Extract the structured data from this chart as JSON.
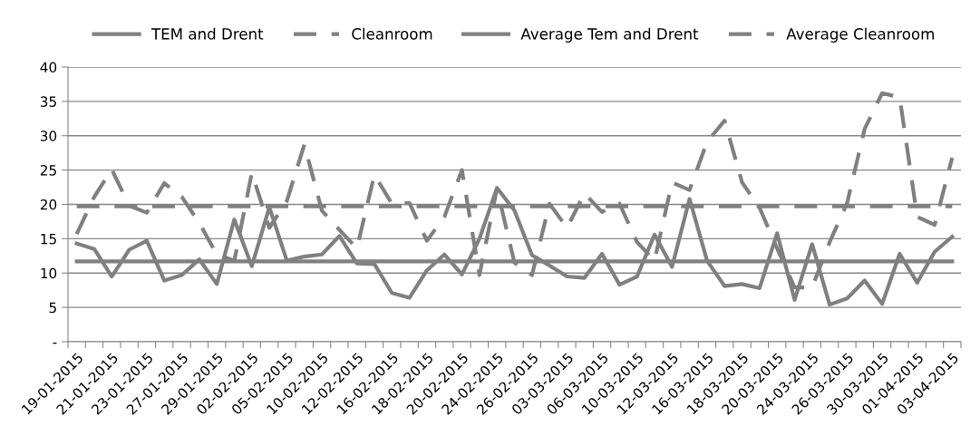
{
  "chart_data": {
    "type": "line",
    "categories": [
      "19-01-2015",
      null,
      "21-01-2015",
      null,
      "23-01-2015",
      null,
      "27-01-2015",
      null,
      "29-01-2015",
      null,
      "02-02-2015",
      null,
      "05-02-2015",
      null,
      "10-02-2015",
      null,
      "12-02-2015",
      null,
      "16-02-2015",
      null,
      "18-02-2015",
      null,
      "20-02-2015",
      null,
      "24-02-2015",
      null,
      "26-02-2015",
      null,
      "03-03-2015",
      null,
      "06-03-2015",
      null,
      "10-03-2015",
      null,
      "12-03-2015",
      null,
      "16-03-2015",
      null,
      "18-03-2015",
      null,
      "20-03-2015",
      null,
      "24-03-2015",
      null,
      "26-03-2015",
      null,
      "30-03-2015",
      null,
      "01-04-2015",
      null,
      "03-04-2015"
    ],
    "series": [
      {
        "name": "TEM and Drent",
        "color": "#808080",
        "line_style": "solid",
        "values": [
          14.3,
          13.5,
          9.5,
          13.4,
          14.7,
          8.9,
          9.7,
          12.0,
          8.4,
          17.8,
          11.0,
          19.6,
          11.8,
          12.4,
          12.7,
          15.4,
          11.4,
          11.3,
          7.1,
          6.4,
          10.4,
          12.7,
          9.8,
          15.0,
          22.4,
          19.1,
          12.6,
          11.1,
          9.5,
          9.3,
          12.8,
          8.3,
          9.5,
          15.6,
          10.9,
          20.8,
          11.8,
          8.1,
          8.4,
          7.8,
          15.8,
          6.1,
          14.2,
          5.4,
          6.3,
          8.9,
          5.5,
          12.8,
          8.6,
          13.1,
          15.3
        ]
      },
      {
        "name": "Cleanroom",
        "color": "#808080",
        "line_style": "dashed",
        "values": [
          15.7,
          21.1,
          25.1,
          19.8,
          18.8,
          23.1,
          21.1,
          17.3,
          12.7,
          11.8,
          24.6,
          16.6,
          20.5,
          28.7,
          19.1,
          16.3,
          13.6,
          24.3,
          20.1,
          20.2,
          14.7,
          18.2,
          25.0,
          9.7,
          22.3,
          11.5,
          9.7,
          20.1,
          16.6,
          21.6,
          18.9,
          20.1,
          14.5,
          11.8,
          23.2,
          22.1,
          29.1,
          32.2,
          23.2,
          19.5,
          13.6,
          7.9,
          7.9,
          14.5,
          20.2,
          31.0,
          36.2,
          35.6,
          18.2,
          17.0,
          26.8
        ]
      },
      {
        "name": "Average Tem and Drent",
        "color": "#808080",
        "line_style": "solid",
        "values": [
          11.7,
          11.7,
          11.7,
          11.7,
          11.7,
          11.7,
          11.7,
          11.7,
          11.7,
          11.7,
          11.7,
          11.7,
          11.7,
          11.7,
          11.7,
          11.7,
          11.7,
          11.7,
          11.7,
          11.7,
          11.7,
          11.7,
          11.7,
          11.7,
          11.7,
          11.7,
          11.7,
          11.7,
          11.7,
          11.7,
          11.7,
          11.7,
          11.7,
          11.7,
          11.7,
          11.7,
          11.7,
          11.7,
          11.7,
          11.7,
          11.7,
          11.7,
          11.7,
          11.7,
          11.7,
          11.7,
          11.7,
          11.7,
          11.7,
          11.7,
          11.7
        ]
      },
      {
        "name": "Average Cleanroom",
        "color": "#808080",
        "line_style": "dashed",
        "values": [
          19.7,
          19.7,
          19.7,
          19.7,
          19.7,
          19.7,
          19.7,
          19.7,
          19.7,
          19.7,
          19.7,
          19.7,
          19.7,
          19.7,
          19.7,
          19.7,
          19.7,
          19.7,
          19.7,
          19.7,
          19.7,
          19.7,
          19.7,
          19.7,
          19.7,
          19.7,
          19.7,
          19.7,
          19.7,
          19.7,
          19.7,
          19.7,
          19.7,
          19.7,
          19.7,
          19.7,
          19.7,
          19.7,
          19.7,
          19.7,
          19.7,
          19.7,
          19.7,
          19.7,
          19.7,
          19.7,
          19.7,
          19.7,
          19.7,
          19.7,
          19.7
        ]
      }
    ],
    "ylim": [
      0,
      40
    ],
    "yticks": [
      {
        "value": 0,
        "label": "-"
      },
      5,
      10,
      15,
      20,
      25,
      30,
      35,
      40
    ],
    "grid": "y",
    "legend": "top",
    "marker": "none"
  }
}
